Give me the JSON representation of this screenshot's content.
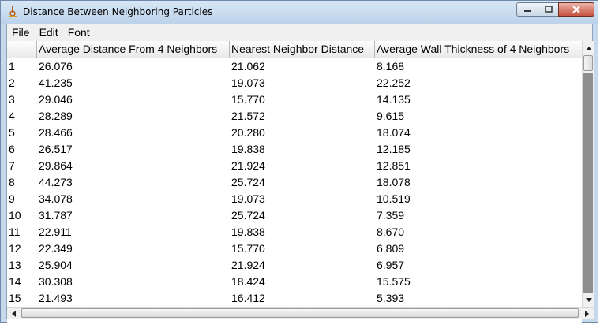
{
  "window": {
    "title": "Distance Between Neighboring Particles",
    "app_icon": "imagej-microscope-icon"
  },
  "menu": [
    "File",
    "Edit",
    "Font"
  ],
  "table": {
    "columns": [
      "",
      "Average Distance From 4 Neighbors",
      "Nearest Neighbor Distance",
      "Average Wall Thickness of 4 Neighbors"
    ],
    "rows": [
      [
        "1",
        "26.076",
        "21.062",
        "8.168"
      ],
      [
        "2",
        "41.235",
        "19.073",
        "22.252"
      ],
      [
        "3",
        "29.046",
        "15.770",
        "14.135"
      ],
      [
        "4",
        "28.289",
        "21.572",
        "9.615"
      ],
      [
        "5",
        "28.466",
        "20.280",
        "18.074"
      ],
      [
        "6",
        "26.517",
        "19.838",
        "12.185"
      ],
      [
        "7",
        "29.864",
        "21.924",
        "12.851"
      ],
      [
        "8",
        "44.273",
        "25.724",
        "18.078"
      ],
      [
        "9",
        "34.078",
        "19.073",
        "10.519"
      ],
      [
        "10",
        "31.787",
        "25.724",
        "7.359"
      ],
      [
        "11",
        "22.911",
        "19.838",
        "8.670"
      ],
      [
        "12",
        "22.349",
        "15.770",
        "6.809"
      ],
      [
        "13",
        "25.904",
        "21.924",
        "6.957"
      ],
      [
        "14",
        "30.308",
        "18.424",
        "15.575"
      ],
      [
        "15",
        "21.493",
        "16.412",
        "5.393"
      ]
    ]
  }
}
